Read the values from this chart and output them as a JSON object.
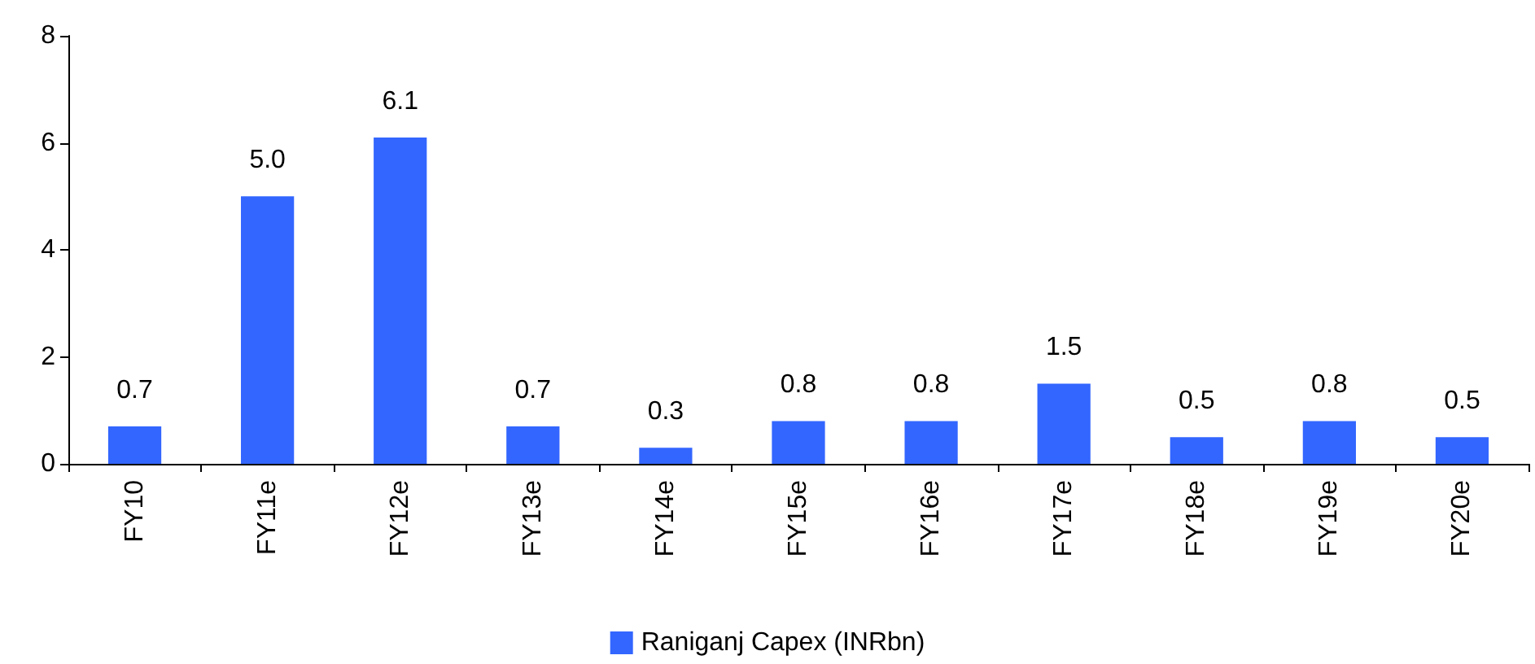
{
  "chart_data": {
    "type": "bar",
    "categories": [
      "FY10",
      "FY11e",
      "FY12e",
      "FY13e",
      "FY14e",
      "FY15e",
      "FY16e",
      "FY17e",
      "FY18e",
      "FY19e",
      "FY20e"
    ],
    "series": [
      {
        "name": "Raniganj Capex (INRbn)",
        "color": "#3366ff",
        "values": [
          0.7,
          5.0,
          6.1,
          0.7,
          0.3,
          0.8,
          0.8,
          1.5,
          0.5,
          0.8,
          0.5
        ],
        "value_labels": [
          "0.7",
          "5.0",
          "6.1",
          "0.7",
          "0.3",
          "0.8",
          "0.8",
          "1.5",
          "0.5",
          "0.8",
          "0.5"
        ]
      }
    ],
    "ylim": [
      0,
      8
    ],
    "yticks": [
      0,
      2,
      4,
      6,
      8
    ],
    "grid": false,
    "legend": "bottom"
  }
}
